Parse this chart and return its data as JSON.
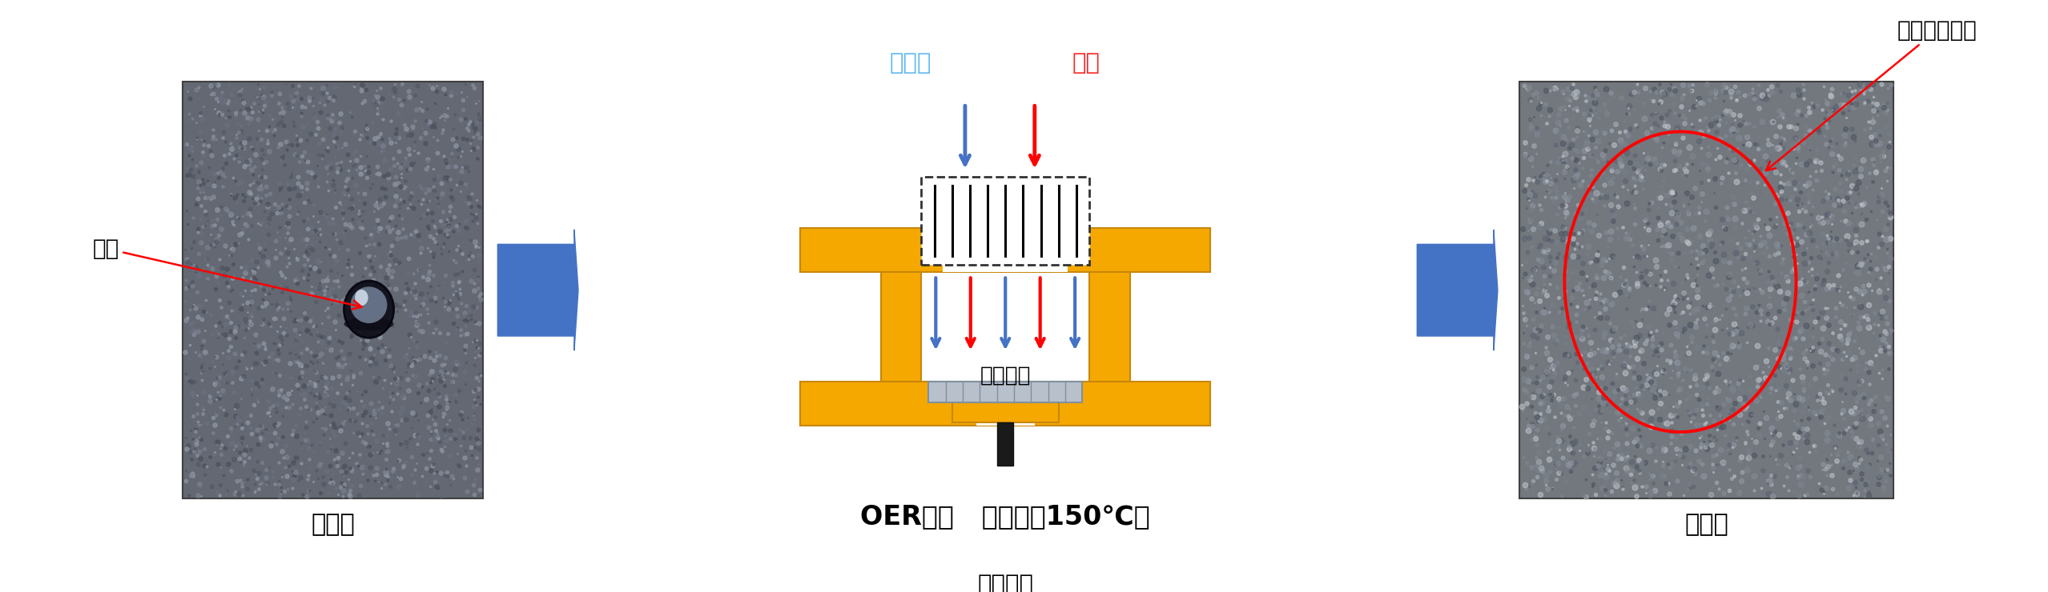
{
  "fig_width": 25.57,
  "fig_height": 7.4,
  "dpi": 100,
  "bg_color": "#ffffff",
  "label_before": "处理前",
  "label_after": "处理后",
  "label_oer": "OER工艺   （常温～150℃）",
  "label_water_drop": "水滴",
  "label_water_trace": "水滴渗透痕迹",
  "label_pure_ozone": "纯臭氧",
  "label_ethylene": "乙烯",
  "label_nozzle": "专用喷头",
  "label_vacuum": "真空排气",
  "gold_color": "#F5A800",
  "gold_border": "#C8870A",
  "blue_color": "#4472C4",
  "red_color": "#FF0000",
  "cyan_text_color": "#5BB8F0",
  "red_text_color": "#FF2020",
  "photo_left_color": "#6b7280",
  "photo_right_color": "#7a808a"
}
